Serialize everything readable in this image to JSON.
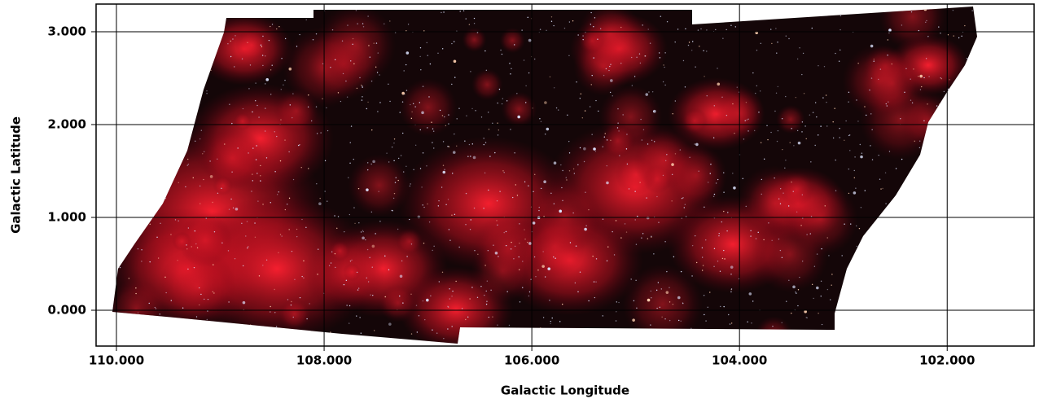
{
  "chart_data": {
    "type": "image",
    "xlabel": "Galactic Longitude",
    "ylabel": "Galactic Latitude",
    "xlim": [
      110.196,
      101.163
    ],
    "ylim": [
      -0.386,
      3.298
    ],
    "xticks": [
      {
        "value": 110,
        "label": "110.000"
      },
      {
        "value": 108,
        "label": "108.000"
      },
      {
        "value": 106,
        "label": "106.000"
      },
      {
        "value": 104,
        "label": "104.000"
      },
      {
        "value": 102,
        "label": "102.000"
      }
    ],
    "yticks": [
      {
        "value": 0,
        "label": "0.000"
      },
      {
        "value": 1,
        "label": "1.000"
      },
      {
        "value": 2,
        "label": "2.000"
      },
      {
        "value": 3,
        "label": "3.000"
      }
    ],
    "grid": true
  }
}
